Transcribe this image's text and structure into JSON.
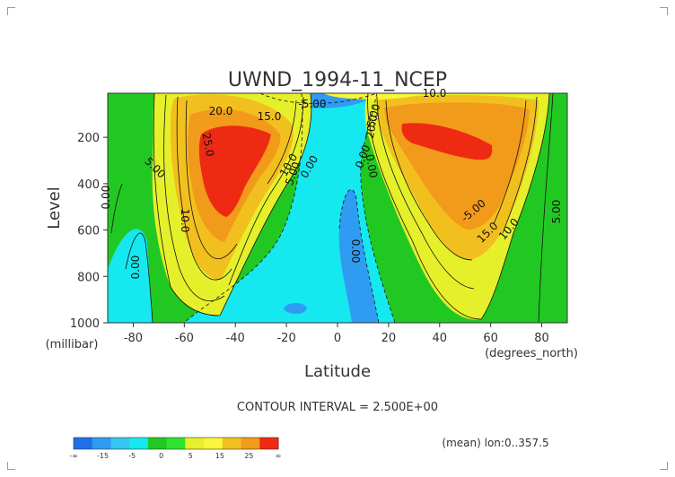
{
  "chart_data": {
    "type": "heatmap",
    "title": "UWND_1994-11_NCEP",
    "xlabel": "Latitude",
    "ylabel": "Level",
    "x_unit": "(degrees_north)",
    "y_unit": "(millibar)",
    "xlim": [
      -90,
      90
    ],
    "ylim": [
      1000,
      10
    ],
    "x_ticks": [
      "-80",
      "-60",
      "-40",
      "-20",
      "0",
      "20",
      "40",
      "60",
      "80"
    ],
    "y_ticks": [
      "200",
      "400",
      "600",
      "800",
      "1000"
    ],
    "contour_interval_text": "CONTOUR INTERVAL = 2.500E+00",
    "footer_note": "(mean) lon:0..357.5",
    "contour_labels": [
      "20.0",
      "15.0",
      "-5.00",
      "10.0",
      "25.0",
      "5.00",
      "10.0",
      "5.00",
      "0.00",
      "0.00",
      "0.00",
      "10.0",
      "0.00",
      "20.0",
      "5.00",
      "0.00",
      "-5.00",
      "15.0",
      "10.0",
      "5.00",
      "0.00"
    ],
    "colorbar": {
      "colors": [
        "#1f6fe8",
        "#2f9cf2",
        "#36c6f2",
        "#16e8f0",
        "#22c822",
        "#2fe32f",
        "#e6f02a",
        "#f7f53c",
        "#f2c01e",
        "#f29a1a",
        "#ef2a12"
      ],
      "labels": [
        "-∞",
        "-15",
        "-5",
        "0",
        "5",
        "15",
        "25",
        "∞"
      ]
    }
  }
}
